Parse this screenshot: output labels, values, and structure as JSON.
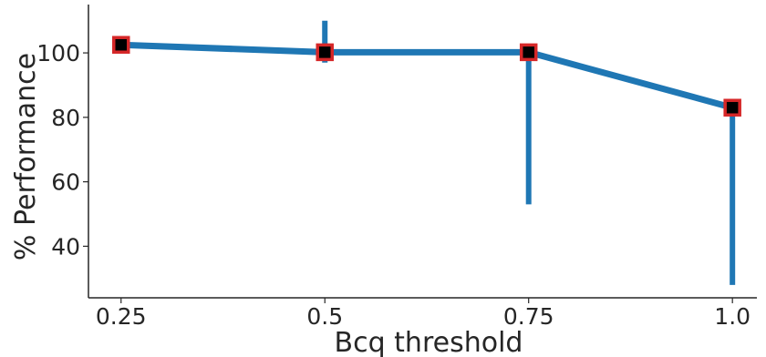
{
  "chart_data": {
    "type": "line",
    "xlabel": "Bcq threshold",
    "ylabel": "% Performance",
    "x": [
      0.25,
      0.5,
      0.75,
      1.0
    ],
    "x_tick_labels": [
      "0.25",
      "0.5",
      "0.75",
      "1.0"
    ],
    "y_ticks": [
      40,
      60,
      80,
      100
    ],
    "xlim": [
      0.21,
      1.03
    ],
    "ylim": [
      24,
      115
    ],
    "grid": false,
    "series": [
      {
        "values": [
          102.5,
          100.2,
          100.2,
          83.0
        ],
        "error_low": [
          102.5,
          97.0,
          53.0,
          28.0
        ],
        "error_high": [
          102.5,
          110.0,
          100.2,
          85.0
        ],
        "line_color": "#1f77b4",
        "marker_fill": "#000000",
        "marker_edge": "#d62728"
      }
    ]
  }
}
